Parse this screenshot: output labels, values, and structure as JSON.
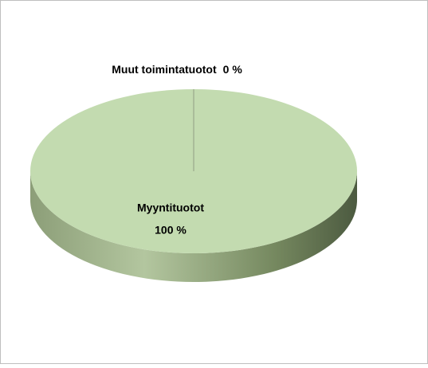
{
  "chart_data": {
    "type": "pie",
    "categories": [
      "Muut toimintatuotot",
      "Myyntituotot"
    ],
    "values": [
      0,
      100
    ],
    "value_labels": [
      "0 %",
      "100 %"
    ],
    "colors": [
      "#9aa88c",
      "#c3dbb0"
    ]
  }
}
